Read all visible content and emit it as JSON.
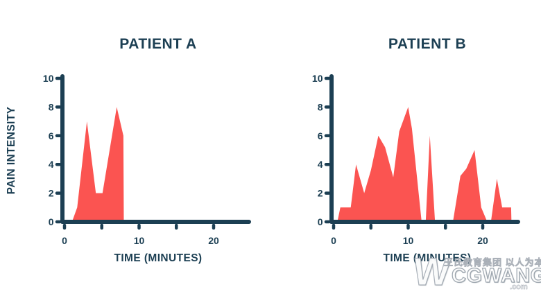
{
  "theme": {
    "navy": "#1c3f53",
    "red": "#fb5451",
    "background": "#ffffff"
  },
  "chart_data": [
    {
      "type": "area",
      "title": "PATIENT A",
      "xlabel": "TIME (MINUTES)",
      "ylabel": "PAIN INTENSITY",
      "xlim": [
        0,
        25
      ],
      "ylim": [
        0,
        10
      ],
      "x_ticks": [
        0,
        5,
        10,
        15,
        20
      ],
      "x_labeled_ticks": [
        0,
        10,
        20
      ],
      "y_ticks": [
        0,
        2,
        4,
        6,
        8,
        10
      ],
      "grid": false,
      "legend": false,
      "fill_color": "#fb5451",
      "points": [
        [
          1,
          0
        ],
        [
          1.7,
          1
        ],
        [
          3,
          7
        ],
        [
          4.2,
          2
        ],
        [
          5.1,
          2
        ],
        [
          7,
          8
        ],
        [
          7.9,
          6
        ],
        [
          7.95,
          0
        ]
      ]
    },
    {
      "type": "area",
      "title": "PATIENT B",
      "xlabel": "TIME (MINUTES)",
      "ylabel": "",
      "xlim": [
        0,
        25
      ],
      "ylim": [
        0,
        10
      ],
      "x_ticks": [
        0,
        5,
        10,
        15,
        20
      ],
      "x_labeled_ticks": [
        0,
        10,
        20
      ],
      "y_ticks": [
        0,
        2,
        4,
        6,
        8,
        10
      ],
      "grid": false,
      "legend": false,
      "fill_color": "#fb5451",
      "points": [
        [
          0.5,
          0
        ],
        [
          0.9,
          1
        ],
        [
          2.3,
          1
        ],
        [
          3,
          4
        ],
        [
          4.1,
          2
        ],
        [
          5,
          3.6
        ],
        [
          6,
          6
        ],
        [
          6.9,
          5.2
        ],
        [
          8,
          3.1
        ],
        [
          8.8,
          6.3
        ],
        [
          10,
          8
        ],
        [
          10.5,
          6.5
        ],
        [
          11.8,
          0
        ],
        [
          12.35,
          0
        ],
        [
          12.9,
          6
        ],
        [
          13.6,
          0
        ],
        [
          16,
          0
        ],
        [
          17,
          3.2
        ],
        [
          17.8,
          3.7
        ],
        [
          18.9,
          5
        ],
        [
          19.8,
          1
        ],
        [
          20.6,
          0
        ],
        [
          21.1,
          0
        ],
        [
          21.9,
          3
        ],
        [
          22.6,
          1
        ],
        [
          23.8,
          1
        ],
        [
          23.85,
          0
        ]
      ]
    }
  ],
  "watermark": {
    "logo": "W",
    "cn_text": "王氏教育集团 以人为本",
    "brand": "CGWANG",
    "domain": ".com"
  }
}
